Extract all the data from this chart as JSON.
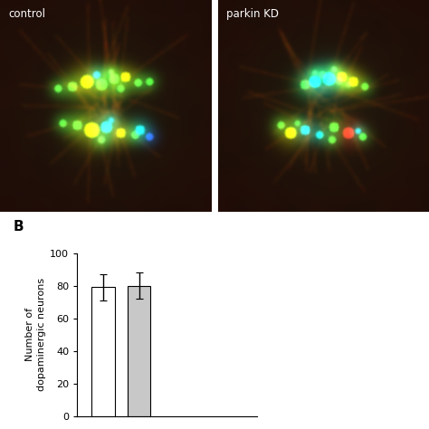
{
  "label_B": "B",
  "bar_values": [
    79,
    80
  ],
  "bar_errors": [
    8,
    8
  ],
  "bar_colors": [
    "#ffffff",
    "#c8c8c8"
  ],
  "bar_edge_colors": [
    "#000000",
    "#000000"
  ],
  "bar_labels": [
    "control",
    "parkin KD"
  ],
  "ylabel": "Number of\ndopaminergic neurons",
  "ylim": [
    0,
    100
  ],
  "yticks": [
    0,
    20,
    40,
    60,
    80,
    100
  ],
  "bar_width": 0.45,
  "bar_positions": [
    0.5,
    1.2
  ],
  "xlim": [
    0.0,
    3.5
  ],
  "img_label_control": "control",
  "img_label_parkin": "parkin KD",
  "background_color": "#ffffff",
  "figure_size": [
    4.74,
    4.74
  ],
  "dpi": 100,
  "font_size_axis": 8,
  "font_size_tick": 8,
  "error_cap_size": 3,
  "error_line_width": 1.0
}
